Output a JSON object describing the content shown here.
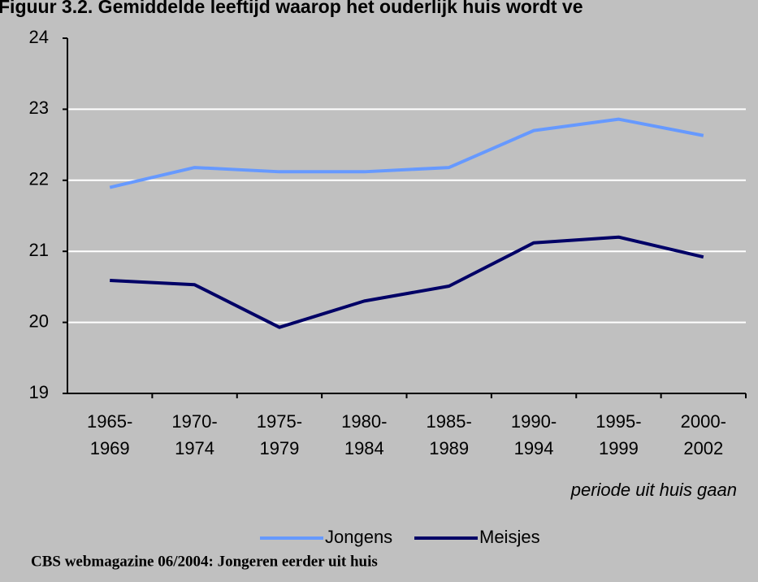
{
  "chart_data": {
    "type": "line",
    "title": "Figuur 3.2. Gemiddelde leeftijd waarop het ouderlijk huis wordt ve",
    "x_label": "periode uit huis gaan",
    "source": "CBS webmagazine 06/2004: Jongeren eerder uit huis",
    "categories": [
      [
        "1965-",
        "1969"
      ],
      [
        "1970-",
        "1974"
      ],
      [
        "1975-",
        "1979"
      ],
      [
        "1980-",
        "1984"
      ],
      [
        "1985-",
        "1989"
      ],
      [
        "1990-",
        "1994"
      ],
      [
        "1995-",
        "1999"
      ],
      [
        "2000-",
        "2002"
      ]
    ],
    "series": [
      {
        "name": "Jongens",
        "color": "#6699ff",
        "values": [
          21.9,
          22.18,
          22.12,
          22.12,
          22.18,
          22.7,
          22.86,
          22.63
        ]
      },
      {
        "name": "Meisjes",
        "color": "#000066",
        "values": [
          20.59,
          20.53,
          19.93,
          20.3,
          20.51,
          21.12,
          21.2,
          20.92
        ]
      }
    ],
    "ylim": [
      19,
      24
    ],
    "yticks": [
      19,
      20,
      21,
      22,
      23,
      24
    ],
    "grid": true
  }
}
